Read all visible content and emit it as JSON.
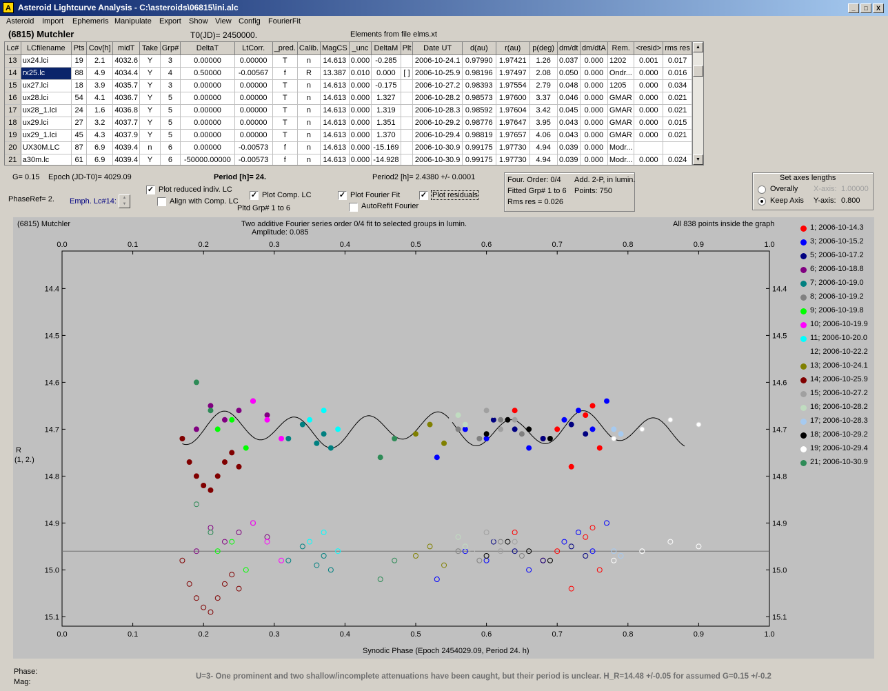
{
  "window": {
    "title": "Asteroid Lightcurve Analysis - C:\\asteroids\\06815\\ini.alc",
    "icon_letter": "A",
    "min": "_",
    "max": "□",
    "close": "X"
  },
  "menu": [
    "Asteroid",
    "Import",
    "Ephemeris",
    "Manipulate",
    "Export",
    "Show",
    "View",
    "Config",
    "FourierFit"
  ],
  "header": {
    "object": "(6815) Mutchler",
    "t0": "T0(JD)= 2450000.",
    "elements": "Elements from file elms.xt"
  },
  "table": {
    "columns": [
      "Lc#",
      "LCfilename",
      "Pts",
      "Cov[h]",
      "midT",
      "Take",
      "Grp#",
      "DeltaT",
      "LtCorr.",
      "_pred.",
      "Calib.",
      "MagCS",
      "_unc",
      "DeltaM",
      "Plt",
      "Date UT",
      "d(au)",
      "r(au)",
      "p(deg)",
      "dm/dt",
      "dm/dtA",
      "Rem.",
      "<resid>",
      "rms res"
    ],
    "rows": [
      [
        "13",
        "ux24.lci",
        "19",
        "2.1",
        "4032.6",
        "Y",
        "3",
        "0.00000",
        "0.00000",
        "T",
        "n",
        "14.613",
        "0.000",
        "-0.285",
        "",
        "2006-10-24.1",
        "0.97990",
        "1.97421",
        "1.26",
        "0.037",
        "0.000",
        "1202",
        "0.001",
        "0.017"
      ],
      [
        "14",
        "rx25.lc",
        "88",
        "4.9",
        "4034.4",
        "Y",
        "4",
        "0.50000",
        "-0.00567",
        "f",
        "R",
        "13.387",
        "0.010",
        "0.000",
        "[ ]",
        "2006-10-25.9",
        "0.98196",
        "1.97497",
        "2.08",
        "0.050",
        "0.000",
        "Ondr...",
        "0.000",
        "0.016"
      ],
      [
        "15",
        "ux27.lci",
        "18",
        "3.9",
        "4035.7",
        "Y",
        "3",
        "0.00000",
        "0.00000",
        "T",
        "n",
        "14.613",
        "0.000",
        "-0.175",
        "",
        "2006-10-27.2",
        "0.98393",
        "1.97554",
        "2.79",
        "0.048",
        "0.000",
        "1205",
        "0.000",
        "0.034"
      ],
      [
        "16",
        "ux28.lci",
        "54",
        "4.1",
        "4036.7",
        "Y",
        "5",
        "0.00000",
        "0.00000",
        "T",
        "n",
        "14.613",
        "0.000",
        "1.327",
        "",
        "2006-10-28.2",
        "0.98573",
        "1.97600",
        "3.37",
        "0.046",
        "0.000",
        "GMAR",
        "0.000",
        "0.021"
      ],
      [
        "17",
        "ux28_1.lci",
        "24",
        "1.6",
        "4036.8",
        "Y",
        "5",
        "0.00000",
        "0.00000",
        "T",
        "n",
        "14.613",
        "0.000",
        "1.319",
        "",
        "2006-10-28.3",
        "0.98592",
        "1.97604",
        "3.42",
        "0.045",
        "0.000",
        "GMAR",
        "0.000",
        "0.021"
      ],
      [
        "18",
        "ux29.lci",
        "27",
        "3.2",
        "4037.7",
        "Y",
        "5",
        "0.00000",
        "0.00000",
        "T",
        "n",
        "14.613",
        "0.000",
        "1.351",
        "",
        "2006-10-29.2",
        "0.98776",
        "1.97647",
        "3.95",
        "0.043",
        "0.000",
        "GMAR",
        "0.000",
        "0.015"
      ],
      [
        "19",
        "ux29_1.lci",
        "45",
        "4.3",
        "4037.9",
        "Y",
        "5",
        "0.00000",
        "0.00000",
        "T",
        "n",
        "14.613",
        "0.000",
        "1.370",
        "",
        "2006-10-29.4",
        "0.98819",
        "1.97657",
        "4.06",
        "0.043",
        "0.000",
        "GMAR",
        "0.000",
        "0.021"
      ],
      [
        "20",
        "UX30M.LC",
        "87",
        "6.9",
        "4039.4",
        "n",
        "6",
        "0.00000",
        "-0.00573",
        "f",
        "n",
        "14.613",
        "0.000",
        "-15.169",
        "",
        "2006-10-30.9",
        "0.99175",
        "1.97730",
        "4.94",
        "0.039",
        "0.000",
        "Modr...",
        "",
        ""
      ],
      [
        "21",
        "a30m.lc",
        "61",
        "6.9",
        "4039.4",
        "Y",
        "6",
        "-50000.00000",
        "-0.00573",
        "f",
        "n",
        "14.613",
        "0.000",
        "-14.928",
        "",
        "2006-10-30.9",
        "0.99175",
        "1.97730",
        "4.94",
        "0.039",
        "0.000",
        "Modr...",
        "0.000",
        "0.024"
      ]
    ]
  },
  "controls": {
    "g": "G= 0.15",
    "epoch": "Epoch (JD-T0)= 4029.09",
    "phaseref": "PhaseRef= 2.",
    "emph": "Emph. Lc#14:",
    "period": "Period [h]= 24.",
    "period2": "Period2 [h]= 2.4380 +/- 0.0001",
    "plot_reduced": "Plot reduced indiv. LC",
    "align": "Align with Comp. LC",
    "plot_comp": "Plot Comp. LC",
    "pltd_grp": "Pltd Grp#  1   to   6",
    "plot_fourier": "Plot Fourier Fit",
    "autorefit": "AutoRefit Fourier",
    "plot_residuals": "Plot residuals",
    "check": "✓"
  },
  "fourier_box": {
    "order": "Four. Order:  0/4",
    "add": "Add. 2-P, in lumin.",
    "fitted": "Fitted Grp# 1 to 6",
    "points": "Points: 750",
    "rms": "Rms res       = 0.026"
  },
  "axes_box": {
    "title": "Set axes lengths",
    "overally": "Overally",
    "keep": "Keep Axis",
    "xaxis": "X-axis:",
    "xval": "1.00000",
    "yaxis": "Y-axis:",
    "yval": "0.800"
  },
  "plot": {
    "object": "(6815) Mutchler",
    "title": "Two additive Fourier series order 0/4 fit to selected groups in lumin.",
    "amplitude": "Amplitude: 0.085",
    "inside": "All 838 points inside the graph",
    "ylabel1": "R",
    "ylabel2": "(1, 2.)",
    "xlabel": "Synodic Phase (Epoch 2454029.09, Period 24. h)"
  },
  "chart_data": {
    "type": "scatter",
    "title": "Two additive Fourier series order 0/4 fit to selected groups in lumin.",
    "xlabel": "Synodic Phase (Epoch 2454029.09, Period 24. h)",
    "ylabel": "R",
    "xlim": [
      0,
      1
    ],
    "ylim": [
      15.12,
      14.32
    ],
    "y_reversed": true,
    "x_ticks": [
      "0.0",
      "0.1",
      "0.2",
      "0.3",
      "0.4",
      "0.5",
      "0.6",
      "0.7",
      "0.8",
      "0.9",
      "1.0"
    ],
    "y_ticks": [
      "14.4",
      "14.5",
      "14.6",
      "14.7",
      "14.8",
      "14.9",
      "15.0",
      "15.1"
    ],
    "residual_zero_line": 14.96,
    "series": [
      {
        "name": "1; 2006-10-14.3",
        "color": "#ff0000",
        "x": [
          0.64,
          0.68,
          0.7,
          0.72,
          0.74,
          0.75,
          0.76
        ],
        "y": [
          14.66,
          14.72,
          14.7,
          14.78,
          14.67,
          14.65,
          14.74
        ]
      },
      {
        "name": "3; 2006-10-15.2",
        "color": "#0000ff",
        "x": [
          0.53,
          0.57,
          0.6,
          0.66,
          0.71,
          0.73,
          0.75,
          0.77
        ],
        "y": [
          14.76,
          14.7,
          14.72,
          14.74,
          14.68,
          14.66,
          14.7,
          14.64
        ]
      },
      {
        "name": "5; 2006-10-17.2",
        "color": "#000080",
        "x": [
          0.61,
          0.64,
          0.68,
          0.72,
          0.74
        ],
        "y": [
          14.68,
          14.7,
          14.72,
          14.69,
          14.71
        ]
      },
      {
        "name": "6; 2006-10-18.8",
        "color": "#800080",
        "x": [
          0.19,
          0.21,
          0.23,
          0.25,
          0.27,
          0.29
        ],
        "y": [
          14.7,
          14.65,
          14.68,
          14.66,
          14.64,
          14.67
        ]
      },
      {
        "name": "7; 2006-10-19.0",
        "color": "#008080",
        "x": [
          0.32,
          0.34,
          0.36,
          0.37,
          0.38
        ],
        "y": [
          14.72,
          14.69,
          14.73,
          14.71,
          14.74
        ]
      },
      {
        "name": "8; 2006-10-19.2",
        "color": "#808080",
        "x": [
          0.56,
          0.59,
          0.62,
          0.65
        ],
        "y": [
          14.7,
          14.72,
          14.68,
          14.71
        ]
      },
      {
        "name": "9; 2006-10-19.8",
        "color": "#00ff00",
        "x": [
          0.22,
          0.24,
          0.26
        ],
        "y": [
          14.7,
          14.68,
          14.74
        ]
      },
      {
        "name": "10; 2006-10-19.9",
        "color": "#ff00ff",
        "x": [
          0.27,
          0.29,
          0.31
        ],
        "y": [
          14.64,
          14.68,
          14.72
        ]
      },
      {
        "name": "11; 2006-10-20.0",
        "color": "#00ffff",
        "x": [
          0.35,
          0.37,
          0.39
        ],
        "y": [
          14.68,
          14.66,
          14.7
        ]
      },
      {
        "name": "12; 2006-10-22.2",
        "color": "#c0c0c0",
        "x": [
          0.55,
          0.58,
          0.61
        ],
        "y": [
          14.68,
          14.7,
          14.67
        ]
      },
      {
        "name": "13; 2006-10-24.1",
        "color": "#808000",
        "x": [
          0.5,
          0.52,
          0.54
        ],
        "y": [
          14.71,
          14.69,
          14.73
        ]
      },
      {
        "name": "14; 2006-10-25.9",
        "color": "#800000",
        "x": [
          0.17,
          0.18,
          0.19,
          0.2,
          0.21,
          0.22,
          0.23,
          0.24,
          0.25
        ],
        "y": [
          14.72,
          14.77,
          14.8,
          14.82,
          14.83,
          14.8,
          14.77,
          14.75,
          14.78
        ]
      },
      {
        "name": "15; 2006-10-27.2",
        "color": "#a0a0a0",
        "x": [
          0.6,
          0.62,
          0.64
        ],
        "y": [
          14.66,
          14.7,
          14.68
        ]
      },
      {
        "name": "16; 2006-10-28.2",
        "color": "#c0dcc0",
        "x": [
          0.56,
          0.57
        ],
        "y": [
          14.67,
          14.69
        ]
      },
      {
        "name": "17; 2006-10-28.3",
        "color": "#a6caf0",
        "x": [
          0.78,
          0.79
        ],
        "y": [
          14.7,
          14.71
        ]
      },
      {
        "name": "18; 2006-10-29.2",
        "color": "#000000",
        "x": [
          0.6,
          0.63,
          0.66,
          0.69
        ],
        "y": [
          14.71,
          14.68,
          14.7,
          14.72
        ]
      },
      {
        "name": "19; 2006-10-29.4",
        "color": "#ffffff",
        "x": [
          0.78,
          0.82,
          0.86,
          0.9
        ],
        "y": [
          14.72,
          14.7,
          14.68,
          14.69
        ]
      },
      {
        "name": "21; 2006-10-30.9",
        "color": "#2e8b57",
        "x": [
          0.19,
          0.21,
          0.45,
          0.47
        ],
        "y": [
          14.6,
          14.66,
          14.76,
          14.72
        ]
      }
    ]
  },
  "status": {
    "phase": "Phase:",
    "mag": "Mag:",
    "footnote": "U=3-  One prominent and two shallow/incomplete attenuations have been caught, but their period is unclear. H_R=14.48 +/-0.05 for assumed G=0.15 +/-0.2"
  }
}
